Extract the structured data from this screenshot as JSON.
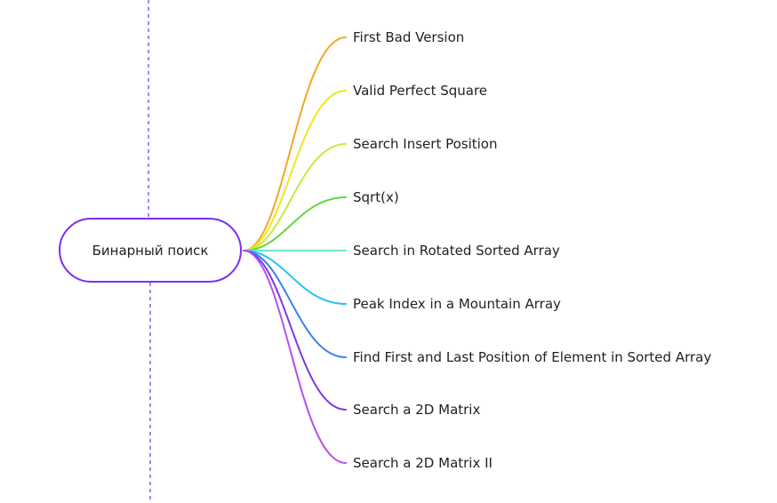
{
  "mindmap": {
    "root": {
      "label": "Бинарный поиск",
      "border_color": "#7b2ff0"
    },
    "guide_color": "#8b5cf6",
    "branches": [
      {
        "label": "First Bad Version",
        "color": "#f5a623"
      },
      {
        "label": "Valid Perfect Square",
        "color": "#f2e51e"
      },
      {
        "label": "Search Insert Position",
        "color": "#c6ea3a"
      },
      {
        "label": "Sqrt(x)",
        "color": "#5fd63a"
      },
      {
        "label": "Search in Rotated Sorted Array",
        "color": "#6ee8c8"
      },
      {
        "label": "Peak Index in a Mountain Array",
        "color": "#22c3f0"
      },
      {
        "label": "Find First and Last Position of Element in Sorted Array",
        "color": "#3b7ff0"
      },
      {
        "label": "Search a 2D Matrix",
        "color": "#7a3be6"
      },
      {
        "label": "Search a 2D Matrix II",
        "color": "#b64ef0"
      }
    ]
  }
}
